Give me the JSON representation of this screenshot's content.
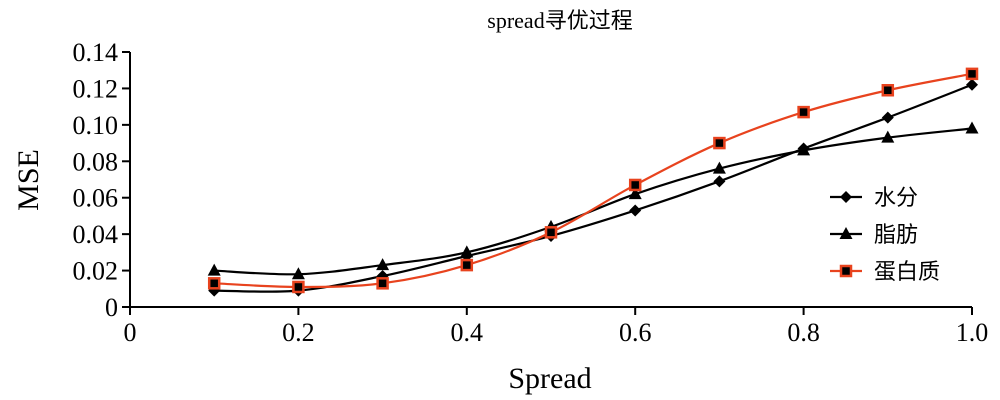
{
  "chart_data": {
    "type": "line",
    "title": "spread寻优过程",
    "xlabel": "Spread",
    "ylabel": "MSE",
    "xlim": [
      0,
      1.0
    ],
    "ylim": [
      0,
      0.14
    ],
    "xticks": [
      0,
      0.2,
      0.4,
      0.6,
      0.8,
      1.0
    ],
    "xtick_labels": [
      "0",
      "0.2",
      "0.4",
      "0.6",
      "0.8",
      "1.0"
    ],
    "yticks": [
      0,
      0.02,
      0.04,
      0.06,
      0.08,
      0.1,
      0.12,
      0.14
    ],
    "ytick_labels": [
      "0",
      "0.02",
      "0.04",
      "0.06",
      "0.08",
      "0.10",
      "0.12",
      "0.14"
    ],
    "grid": false,
    "legend_position": "right",
    "x": [
      0.1,
      0.2,
      0.3,
      0.4,
      0.5,
      0.6,
      0.7,
      0.8,
      0.9,
      1.0
    ],
    "series": [
      {
        "name": "水分",
        "marker": "diamond",
        "color": "#000000",
        "values": [
          0.009,
          0.009,
          0.017,
          0.028,
          0.039,
          0.053,
          0.069,
          0.087,
          0.104,
          0.122
        ]
      },
      {
        "name": "脂肪",
        "marker": "triangle",
        "color": "#000000",
        "values": [
          0.02,
          0.018,
          0.023,
          0.03,
          0.044,
          0.062,
          0.076,
          0.086,
          0.093,
          0.098
        ]
      },
      {
        "name": "蛋白质",
        "marker": "square",
        "color": "#e8431e",
        "values": [
          0.013,
          0.011,
          0.013,
          0.023,
          0.041,
          0.067,
          0.09,
          0.107,
          0.119,
          0.128
        ]
      }
    ]
  }
}
